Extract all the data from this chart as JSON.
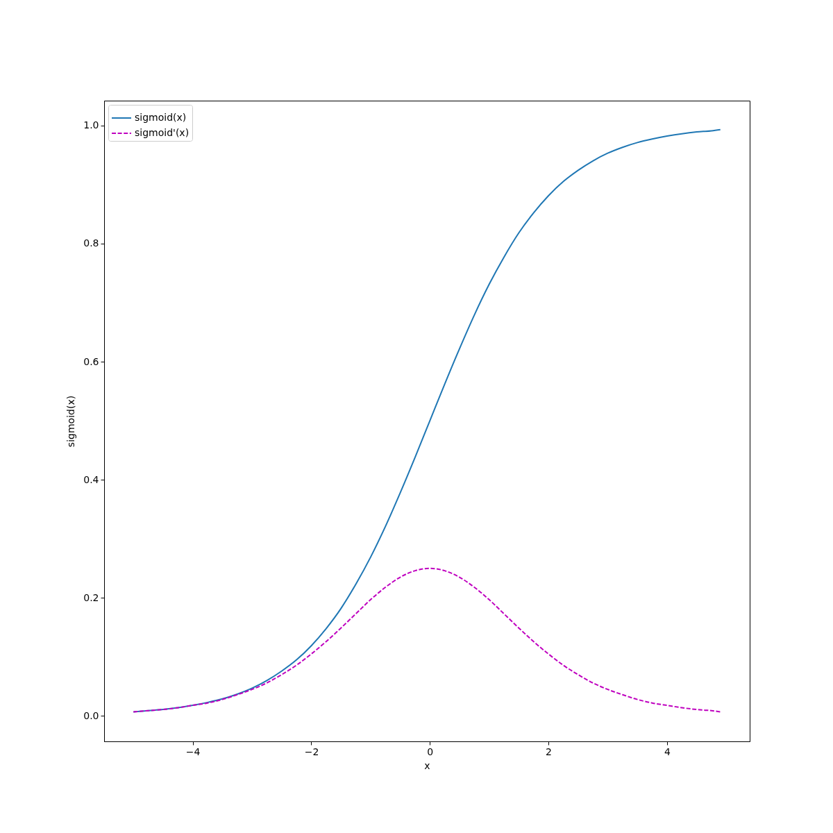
{
  "chart_data": {
    "type": "line",
    "xlabel": "x",
    "ylabel": "sigmoid(x)",
    "x": [
      -5,
      -4.75,
      -4.5,
      -4.25,
      -4,
      -3.75,
      -3.5,
      -3.25,
      -3,
      -2.75,
      -2.5,
      -2.25,
      -2,
      -1.75,
      -1.5,
      -1.25,
      -1,
      -0.75,
      -0.5,
      -0.25,
      0,
      0.25,
      0.5,
      0.75,
      1,
      1.25,
      1.5,
      1.75,
      2,
      2.25,
      2.5,
      2.75,
      3,
      3.25,
      3.5,
      3.75,
      4,
      4.25,
      4.5,
      4.75,
      4.9
    ],
    "series": [
      {
        "name": "sigmoid(x)",
        "color": "#1f77b4",
        "line_style": "solid",
        "values": [
          0.007,
          0.009,
          0.011,
          0.014,
          0.018,
          0.023,
          0.029,
          0.037,
          0.047,
          0.06,
          0.076,
          0.095,
          0.119,
          0.148,
          0.182,
          0.223,
          0.269,
          0.321,
          0.378,
          0.438,
          0.5,
          0.562,
          0.622,
          0.679,
          0.731,
          0.777,
          0.818,
          0.852,
          0.881,
          0.905,
          0.924,
          0.94,
          0.953,
          0.963,
          0.971,
          0.977,
          0.982,
          0.986,
          0.989,
          0.991,
          0.993
        ]
      },
      {
        "name": "sigmoid'(x)",
        "color": "#bf00bf",
        "line_style": "dashed",
        "values": [
          0.007,
          0.009,
          0.011,
          0.014,
          0.018,
          0.022,
          0.028,
          0.036,
          0.045,
          0.056,
          0.07,
          0.086,
          0.105,
          0.126,
          0.149,
          0.173,
          0.197,
          0.218,
          0.235,
          0.246,
          0.25,
          0.246,
          0.235,
          0.218,
          0.197,
          0.173,
          0.149,
          0.126,
          0.105,
          0.086,
          0.07,
          0.056,
          0.045,
          0.036,
          0.028,
          0.022,
          0.018,
          0.014,
          0.011,
          0.009,
          0.007
        ]
      }
    ],
    "xlim": [
      -5.495,
      5.395
    ],
    "ylim": [
      -0.043,
      1.042
    ],
    "xticks": [
      {
        "value": -4,
        "label": "−4"
      },
      {
        "value": -2,
        "label": "−2"
      },
      0,
      2,
      4
    ],
    "yticks": [
      {
        "value": 0,
        "label": "0.0"
      },
      0.2,
      0.4,
      0.6,
      0.8,
      {
        "value": 1,
        "label": "1.0"
      }
    ],
    "legend": "top left",
    "grid": false,
    "marker": "none"
  }
}
